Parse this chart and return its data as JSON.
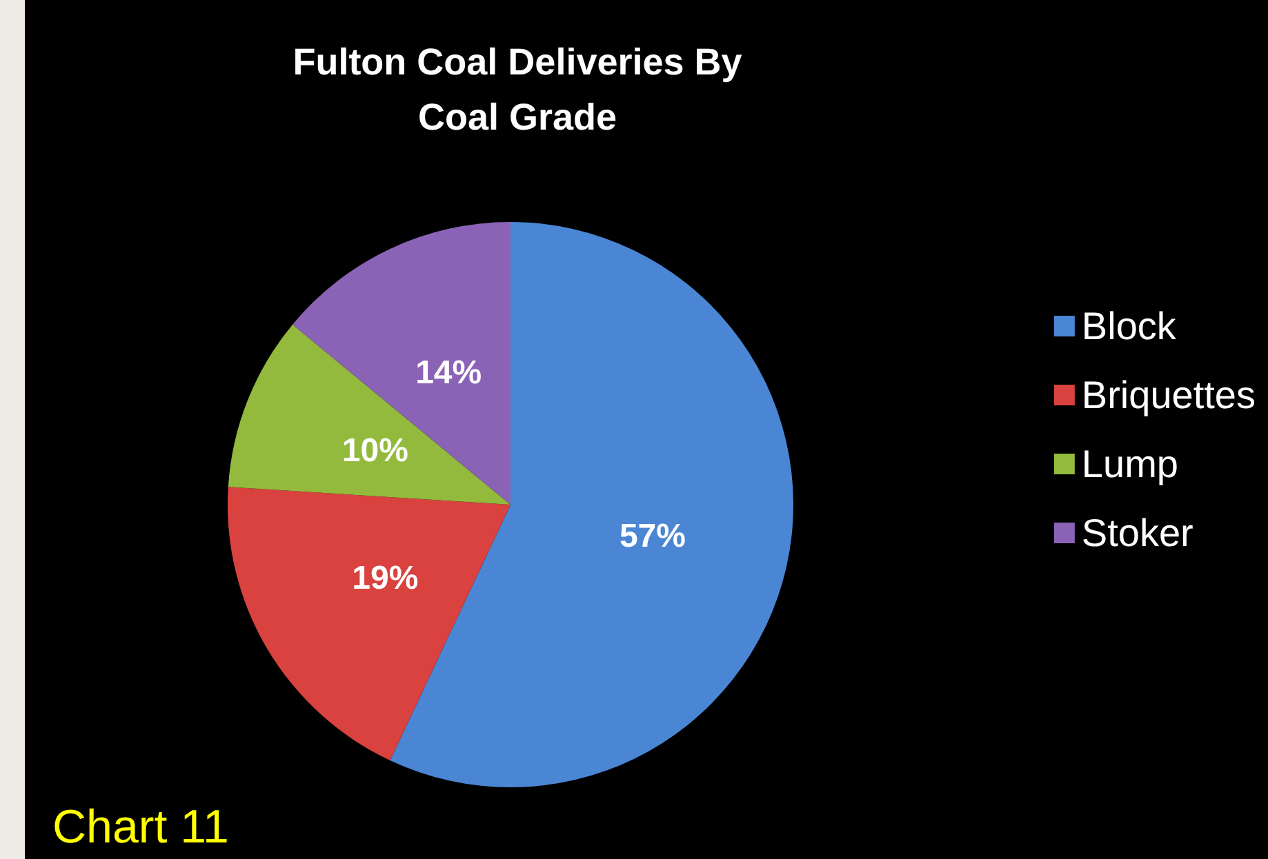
{
  "chart_data": {
    "type": "pie",
    "title": "Fulton Coal Deliveries By\nCoal Grade",
    "categories": [
      "Block",
      "Briquettes",
      "Lump",
      "Stoker"
    ],
    "values": [
      57,
      19,
      10,
      14
    ],
    "colors": [
      "#4a86d4",
      "#d9423f",
      "#93ba3c",
      "#8b63b6"
    ],
    "value_labels": [
      "57%",
      "19%",
      "10%",
      "14%"
    ],
    "legend": "right",
    "annotations": [
      "Chart 11"
    ]
  }
}
